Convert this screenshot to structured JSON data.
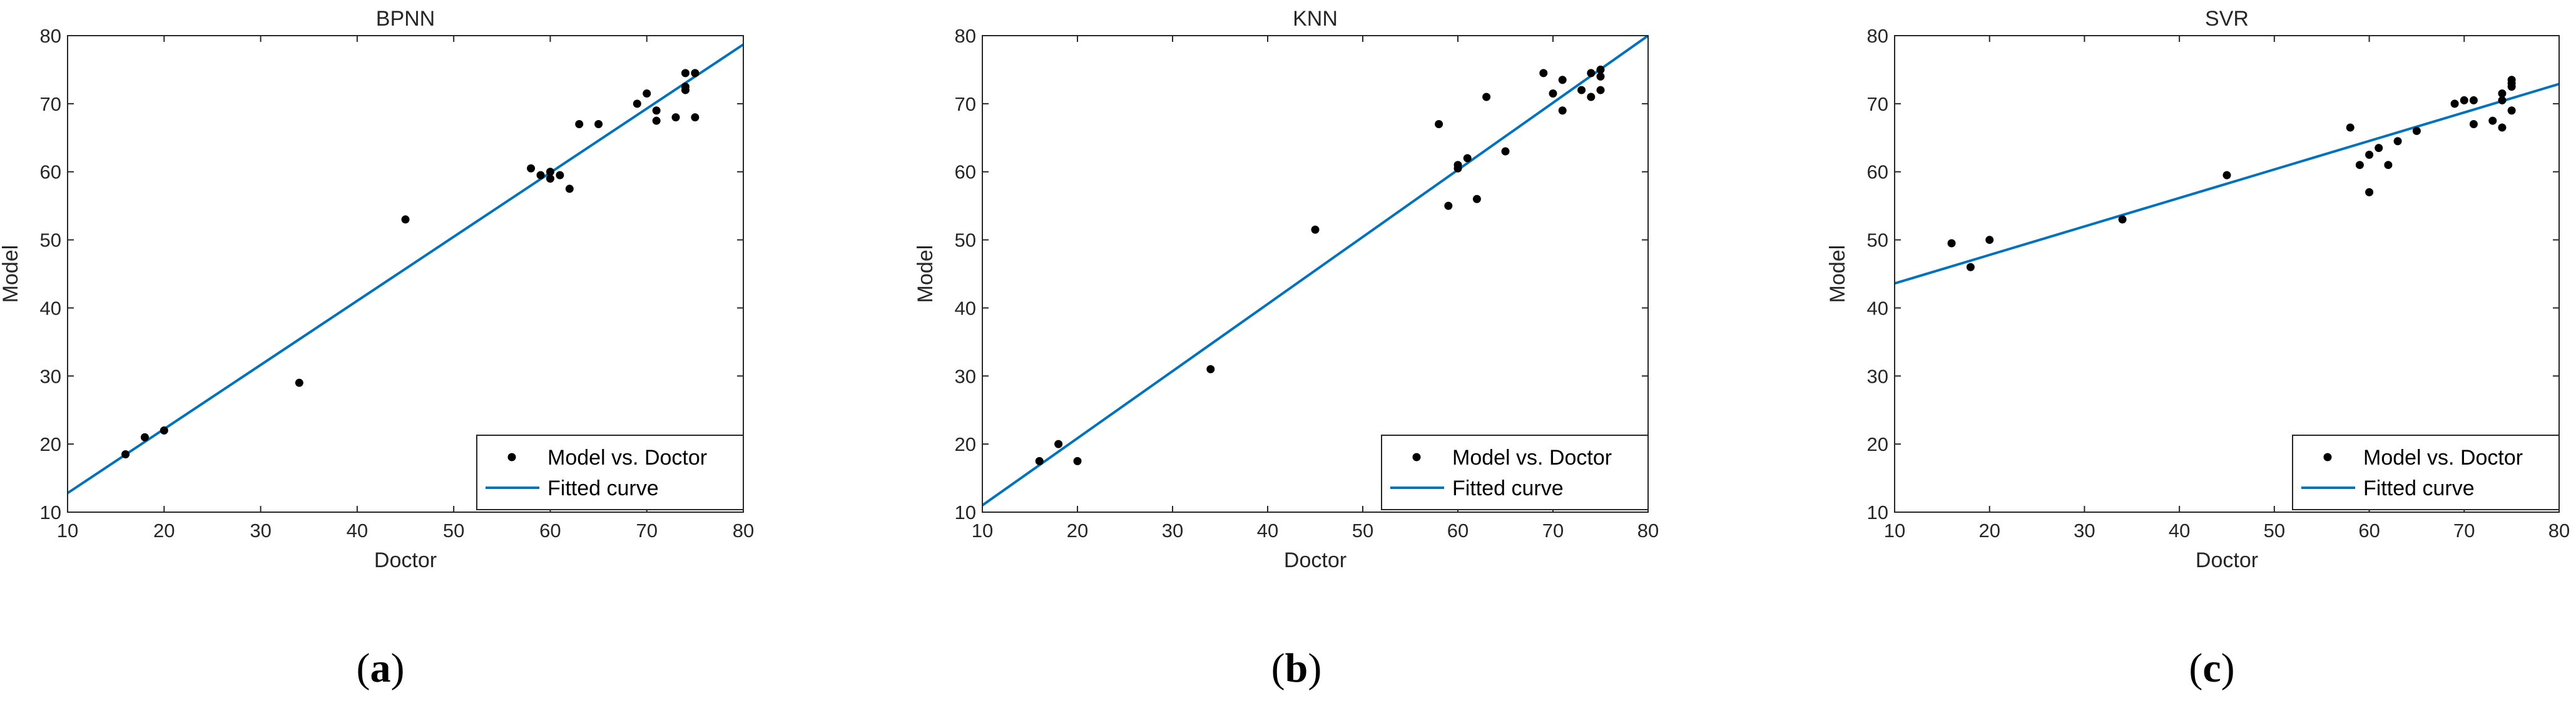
{
  "chart_data": [
    {
      "type": "scatter",
      "title": "BPNN",
      "xlabel": "Doctor",
      "ylabel": "Model",
      "xlim": [
        10,
        80
      ],
      "ylim": [
        10,
        80
      ],
      "xticks": [
        10,
        20,
        30,
        40,
        50,
        60,
        70,
        80
      ],
      "yticks": [
        10,
        20,
        30,
        40,
        50,
        60,
        70,
        80
      ],
      "caption": {
        "open": "(",
        "letter": "a",
        "close": ")"
      },
      "legend": {
        "location": "bottom-right",
        "entries": [
          "Model vs. Doctor",
          "Fitted curve"
        ]
      },
      "series": [
        {
          "name": "Model vs. Doctor",
          "x": [
            16,
            18,
            20,
            34,
            45,
            58,
            59,
            60,
            60,
            61,
            62,
            63,
            65,
            69,
            70,
            71,
            71,
            73,
            74,
            74,
            74,
            75,
            75
          ],
          "y": [
            18.5,
            21,
            22,
            29,
            53,
            60.5,
            59.5,
            60,
            59,
            59.5,
            57.5,
            67,
            67,
            70,
            71.5,
            69,
            67.5,
            68,
            72,
            72.5,
            74.5,
            74.5,
            68
          ]
        },
        {
          "name": "Fitted curve",
          "x": [
            10,
            80
          ],
          "y": [
            12.8,
            78.7
          ]
        }
      ]
    },
    {
      "type": "scatter",
      "title": "KNN",
      "xlabel": "Doctor",
      "ylabel": "Model",
      "xlim": [
        10,
        80
      ],
      "ylim": [
        10,
        80
      ],
      "xticks": [
        10,
        20,
        30,
        40,
        50,
        60,
        70,
        80
      ],
      "yticks": [
        10,
        20,
        30,
        40,
        50,
        60,
        70,
        80
      ],
      "caption": {
        "open": "(",
        "letter": "b",
        "close": ")"
      },
      "legend": {
        "location": "bottom-right",
        "entries": [
          "Model vs. Doctor",
          "Fitted curve"
        ]
      },
      "series": [
        {
          "name": "Model vs. Doctor",
          "x": [
            16,
            18,
            20,
            34,
            45,
            58,
            59,
            60,
            60,
            61,
            62,
            63,
            65,
            69,
            70,
            71,
            71,
            73,
            74,
            74,
            75,
            75,
            75
          ],
          "y": [
            17.5,
            20,
            17.5,
            31,
            51.5,
            67,
            55,
            61,
            60.5,
            62,
            56,
            71,
            63,
            74.5,
            71.5,
            73.5,
            69,
            72,
            71,
            74.5,
            74,
            75,
            72
          ]
        },
        {
          "name": "Fitted curve",
          "x": [
            10,
            80
          ],
          "y": [
            11,
            80
          ]
        }
      ]
    },
    {
      "type": "scatter",
      "title": "SVR",
      "xlabel": "Doctor",
      "ylabel": "Model",
      "xlim": [
        10,
        80
      ],
      "ylim": [
        10,
        80
      ],
      "xticks": [
        10,
        20,
        30,
        40,
        50,
        60,
        70,
        80
      ],
      "yticks": [
        10,
        20,
        30,
        40,
        50,
        60,
        70,
        80
      ],
      "caption": {
        "open": "(",
        "letter": "c",
        "close": ")"
      },
      "legend": {
        "location": "bottom-right",
        "entries": [
          "Model vs. Doctor",
          "Fitted curve"
        ]
      },
      "series": [
        {
          "name": "Model vs. Doctor",
          "x": [
            16,
            18,
            20,
            34,
            45,
            58,
            59,
            60,
            60,
            61,
            62,
            63,
            65,
            69,
            70,
            71,
            71,
            73,
            74,
            74,
            74,
            75,
            75,
            75,
            75
          ],
          "y": [
            49.5,
            46,
            50,
            53,
            59.5,
            66.5,
            61,
            62.5,
            57,
            63.5,
            61,
            64.5,
            66,
            70,
            70.5,
            70.5,
            67,
            67.5,
            70.5,
            71.5,
            66.5,
            72.5,
            73,
            73.5,
            69
          ]
        },
        {
          "name": "Fitted curve",
          "x": [
            10,
            80
          ],
          "y": [
            43.6,
            72.9
          ]
        }
      ]
    }
  ],
  "colors": {
    "marker": "#000000",
    "fit_line": "#0072BD",
    "axes": "#262626",
    "background": "#ffffff"
  }
}
